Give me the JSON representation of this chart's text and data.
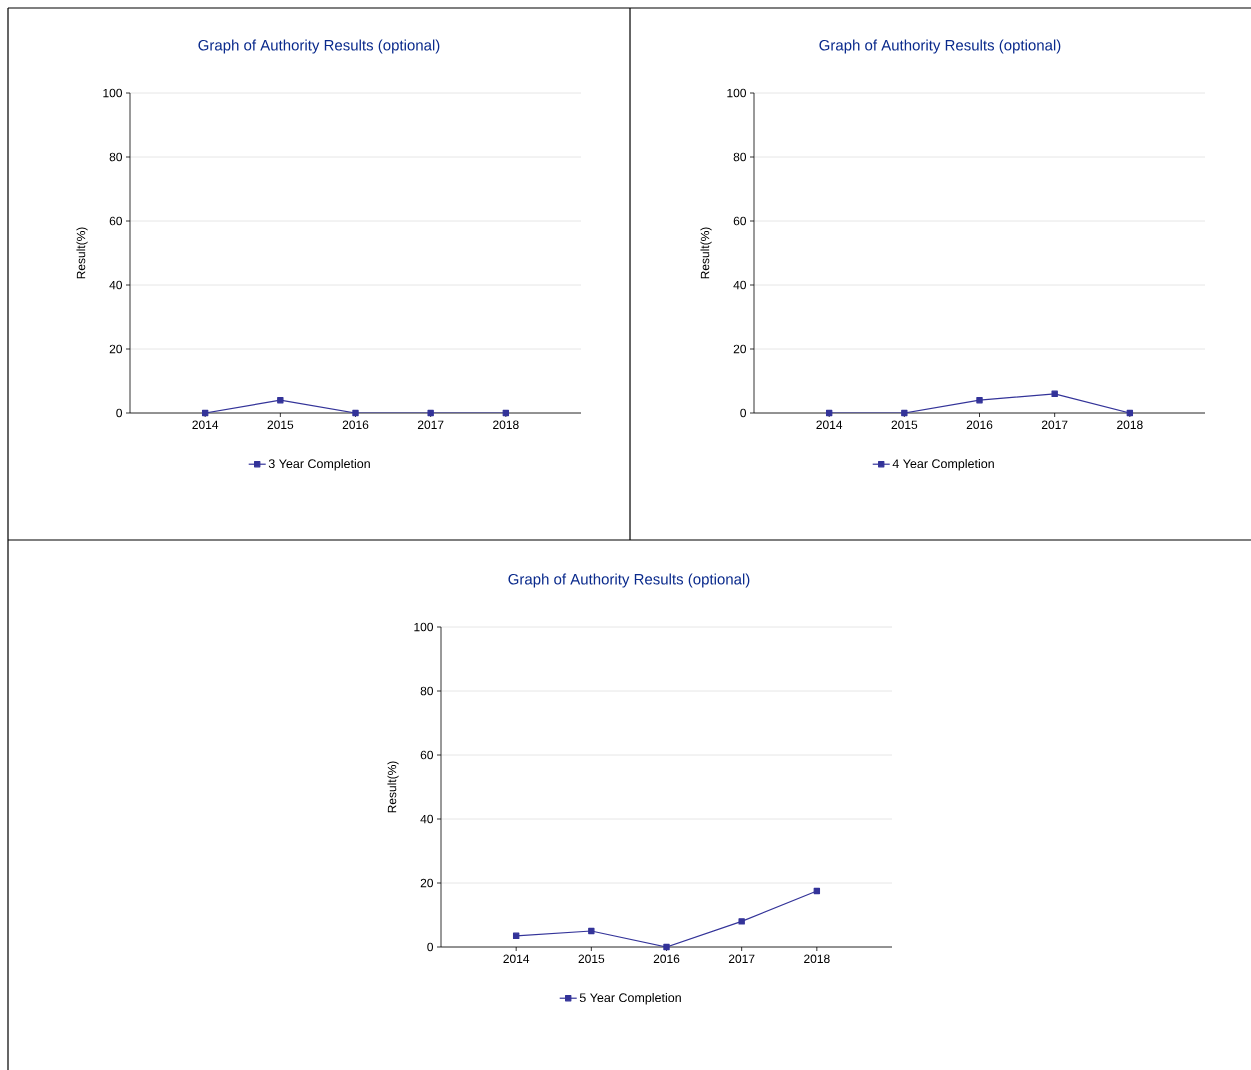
{
  "chart_data": [
    {
      "type": "line",
      "title": "Graph of Authority Results (optional)",
      "ylabel": "Result(%)",
      "categories": [
        "2014",
        "2015",
        "2016",
        "2017",
        "2018"
      ],
      "series": [
        {
          "name": "3 Year Completion",
          "color": "#333399",
          "values": [
            0,
            4,
            0,
            0,
            0
          ]
        }
      ],
      "ylim": [
        0,
        100
      ],
      "yticks": [
        0,
        20,
        40,
        60,
        80,
        100
      ],
      "grid": "y",
      "legend": "bottom",
      "marker": "square"
    },
    {
      "type": "line",
      "title": "Graph of Authority Results (optional)",
      "ylabel": "Result(%)",
      "categories": [
        "2014",
        "2015",
        "2016",
        "2017",
        "2018"
      ],
      "series": [
        {
          "name": "4 Year Completion",
          "color": "#333399",
          "values": [
            0,
            0,
            4,
            6,
            0
          ]
        }
      ],
      "ylim": [
        0,
        100
      ],
      "yticks": [
        0,
        20,
        40,
        60,
        80,
        100
      ],
      "grid": "y",
      "legend": "bottom",
      "marker": "square"
    },
    {
      "type": "line",
      "title": "Graph of Authority Results (optional)",
      "ylabel": "Result(%)",
      "categories": [
        "2014",
        "2015",
        "2016",
        "2017",
        "2018"
      ],
      "series": [
        {
          "name": "5 Year Completion",
          "color": "#333399",
          "values": [
            3.5,
            5,
            0,
            8,
            17.5
          ]
        }
      ],
      "ylim": [
        0,
        100
      ],
      "yticks": [
        0,
        20,
        40,
        60,
        80,
        100
      ],
      "grid": "y",
      "legend": "bottom",
      "marker": "square"
    }
  ]
}
